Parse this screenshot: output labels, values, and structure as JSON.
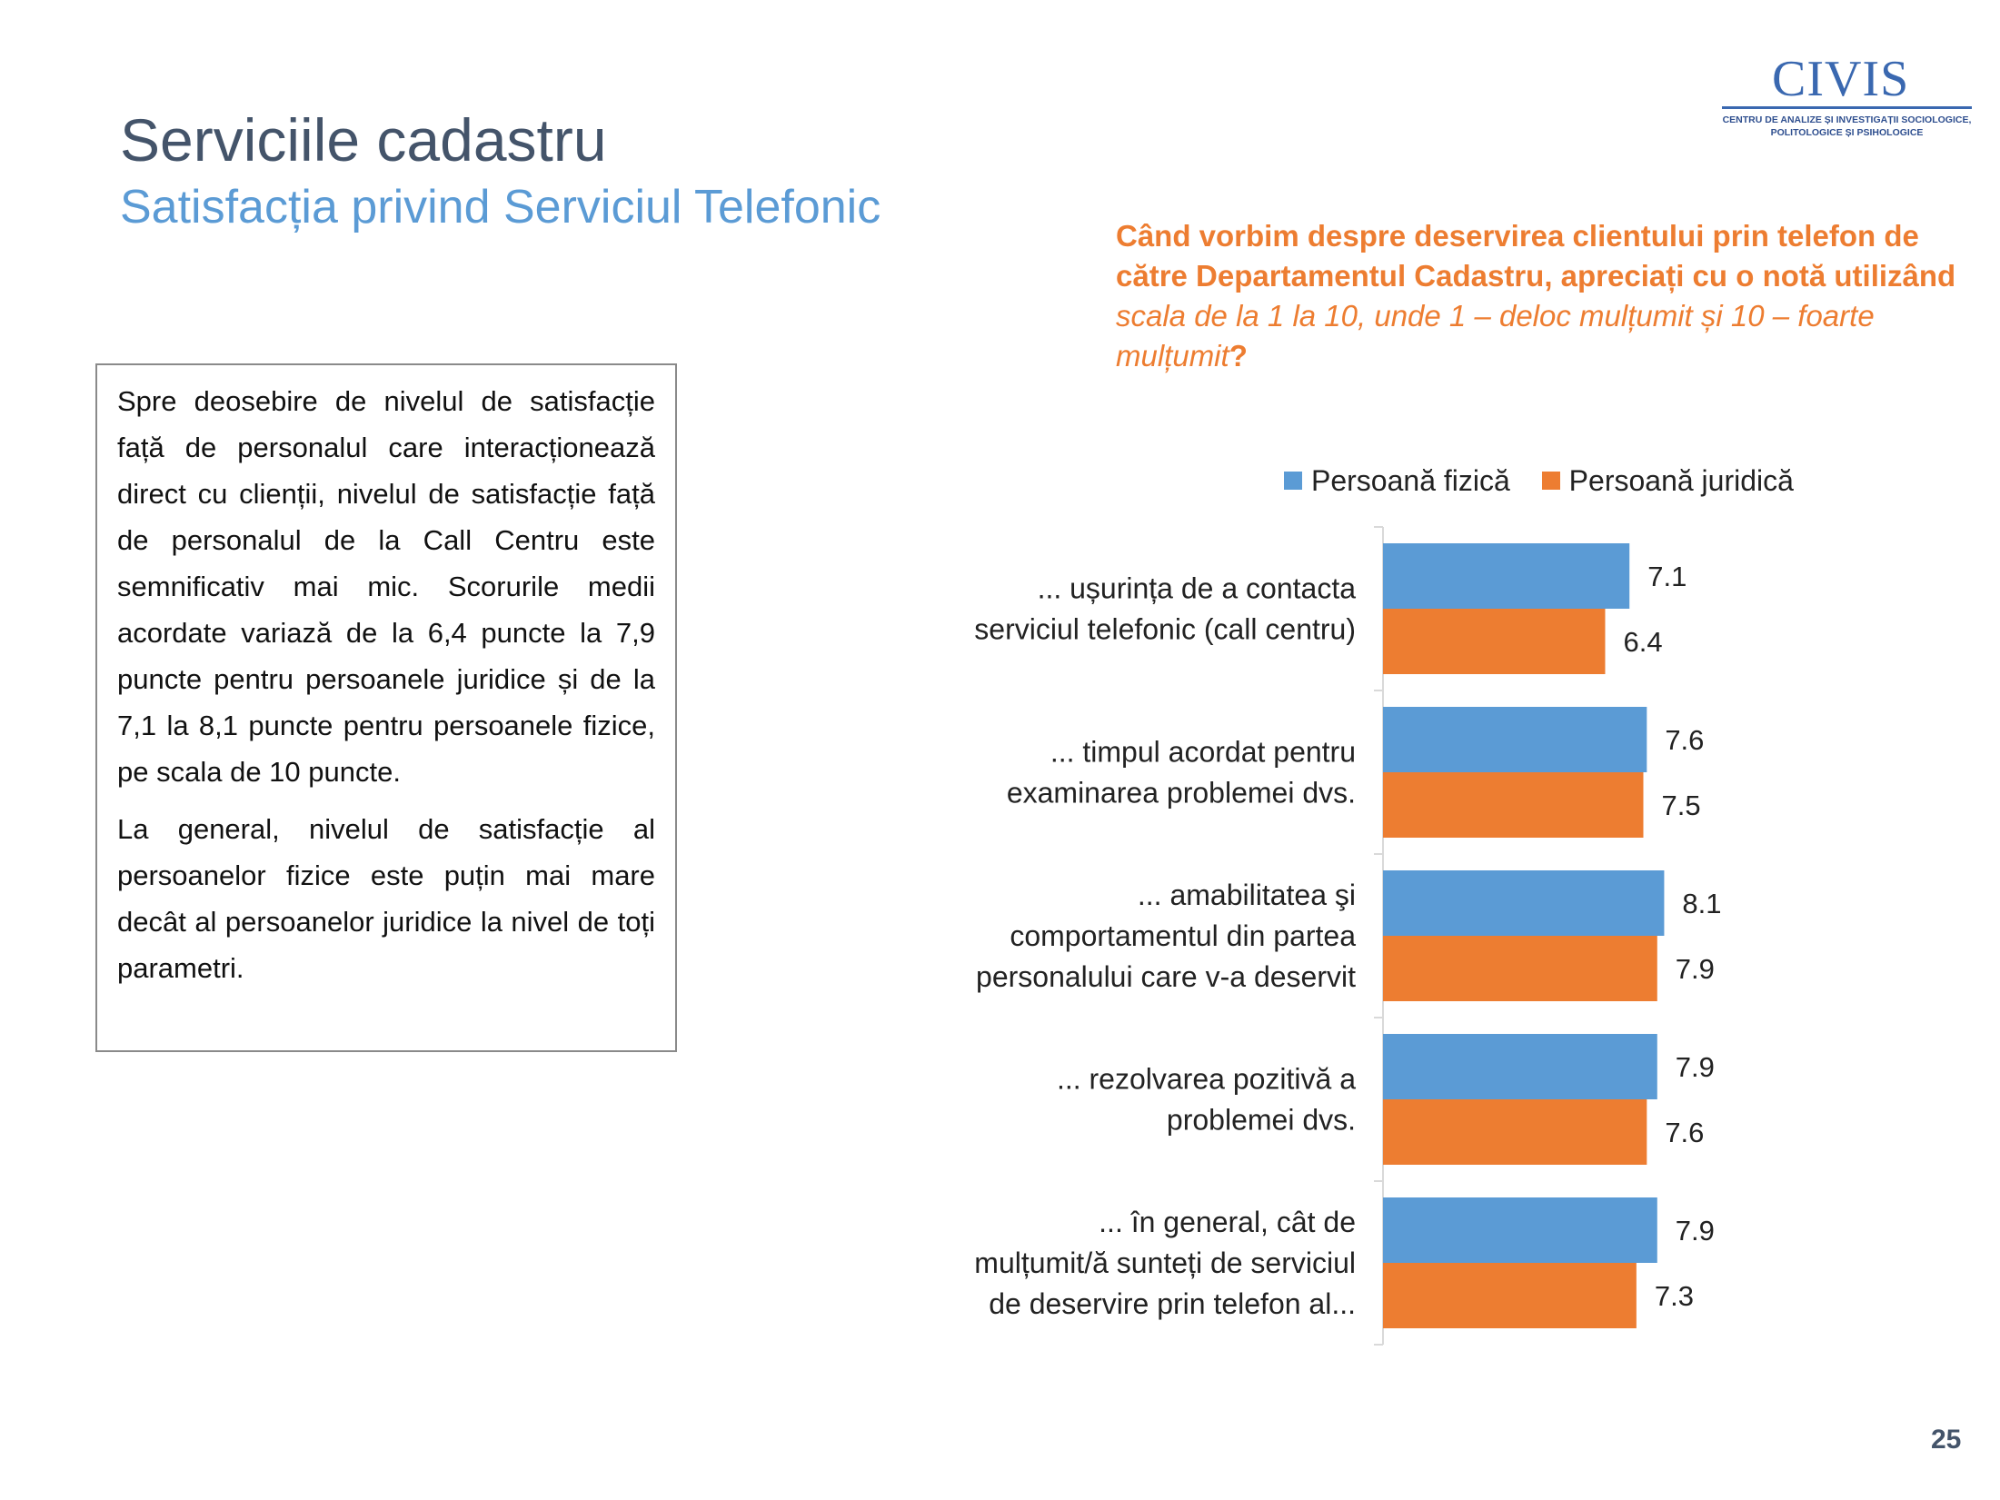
{
  "header": {
    "title": "Serviciile cadastru",
    "subtitle": "Satisfacția privind Serviciul Telefonic"
  },
  "logo": {
    "name": "CIVIS",
    "tagline_line1": "CENTRU DE ANALIZE ȘI INVESTIGAȚII SOCIOLOGICE,",
    "tagline_line2": "POLITOLOGICE ȘI PSIHOLOGICE",
    "color": "#3a68b0"
  },
  "question": {
    "bold_part": "Când vorbim despre deservirea clientului prin telefon de către Departamentul Cadastru, apreciați cu o notă utilizând ",
    "italic_part": "scala de la 1 la 10, unde 1 – deloc mulțumit și 10 – foarte mulțumit",
    "end": "?"
  },
  "textbox": {
    "paragraph1": "Spre deosebire de nivelul de satisfacție față de personalul care interacționează direct cu clienții, nivelul de satisfacție față de personalul de la Call Centru este semnificativ mai mic. Scorurile medii acordate variază de la 6,4 puncte la 7,9 puncte pentru persoanele juridice și de la 7,1 la 8,1 puncte pentru persoanele fizice, pe scala de 10 puncte.",
    "paragraph2": "La general, nivelul de satisfacție al persoanelor fizice este puțin mai mare decât al persoanelor juridice la nivel de toți parametri."
  },
  "page_number": "25",
  "chart_data": {
    "type": "bar",
    "orientation": "horizontal",
    "categories": [
      [
        "...  ușurința de a contacta",
        "serviciul telefonic (call centru)"
      ],
      [
        "...  timpul acordat pentru",
        "examinarea problemei dvs."
      ],
      [
        "...  amabilitatea şi",
        "comportamentul din partea",
        "personalului care v-a deservit"
      ],
      [
        "...  rezolvarea pozitivă a",
        "problemei dvs."
      ],
      [
        "...  în general, cât de",
        "mulțumit/ă sunteți de serviciul",
        "de deservire prin telefon al..."
      ]
    ],
    "series": [
      {
        "name": "Persoană fizică",
        "color": "#5b9bd5",
        "values": [
          7.1,
          7.6,
          8.1,
          7.9,
          7.9
        ]
      },
      {
        "name": "Persoană juridică",
        "color": "#ed7d31",
        "values": [
          6.4,
          7.5,
          7.9,
          7.6,
          7.3
        ]
      }
    ],
    "xlim": [
      0,
      10
    ],
    "grid": false,
    "legend": "top",
    "data_labels": true
  }
}
